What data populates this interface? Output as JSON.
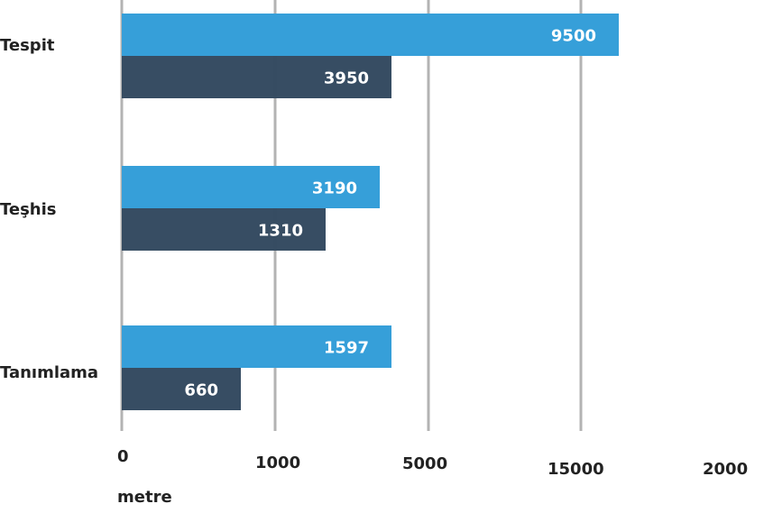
{
  "chart_data": {
    "type": "bar",
    "orientation": "horizontal",
    "categories": [
      "Tespit",
      "Teşhis",
      "Tanımlama"
    ],
    "series": [
      {
        "color": "#369fd9",
        "values": [
          9500,
          3190,
          1597
        ]
      },
      {
        "color": "#334960",
        "values": [
          3950,
          1310,
          660
        ]
      }
    ],
    "x_tick_labels": [
      "0",
      "1000",
      "5000",
      "15000",
      "2000"
    ],
    "xlabel": "metre",
    "grid": true,
    "legend": "none"
  }
}
